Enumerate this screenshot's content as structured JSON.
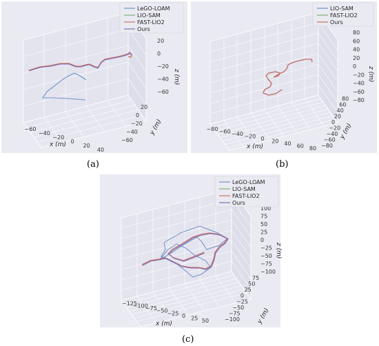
{
  "colors": {
    "lego_loam": "#6f8fc9",
    "lio_sam": "#78b277",
    "fast_lio2": "#c7706b",
    "ours": "#7b6fb7",
    "pane": "#eaeaf2",
    "grid": "#ffffff"
  },
  "chart_data": [
    {
      "type": "line",
      "panel": "a",
      "caption": "(a)",
      "xlabel": "x (m)",
      "ylabel": "y (m)",
      "zlabel": "z (m)",
      "x_ticks": [
        "−60",
        "−40",
        "−20",
        "0",
        "20",
        "40"
      ],
      "y_ticks": [
        "−60",
        "−40",
        "−20",
        "0",
        "20"
      ],
      "z_ticks": [
        "20",
        "0",
        "−20",
        "−40",
        "−60"
      ],
      "legend_placement": "top-right",
      "grid": true,
      "series": [
        {
          "name": "LeGO-LOAM",
          "color_key": "lego_loam"
        },
        {
          "name": "LIO-SAM",
          "color_key": "lio_sam"
        },
        {
          "name": "FAST-LIO2",
          "color_key": "fast_lio2"
        },
        {
          "name": "Ours",
          "color_key": "ours"
        }
      ]
    },
    {
      "type": "line",
      "panel": "b",
      "caption": "(b)",
      "xlabel": "x (m)",
      "ylabel": "y (m)",
      "zlabel": "z (m)",
      "x_ticks": [
        "−80",
        "−60",
        "−40",
        "−20",
        "0",
        "20",
        "40",
        "60",
        "80"
      ],
      "y_ticks": [
        "−80",
        "−60",
        "−40",
        "−20",
        "0",
        "20",
        "40",
        "60",
        "80"
      ],
      "z_ticks": [
        "80",
        "60",
        "40",
        "20",
        "0",
        "−20",
        "−40",
        "−60",
        "−80"
      ],
      "legend_placement": "top-right",
      "grid": true,
      "series": [
        {
          "name": "LIO-SAM",
          "color_key": "lego_loam"
        },
        {
          "name": "FAST-LIO2",
          "color_key": "lio_sam"
        },
        {
          "name": "Ours",
          "color_key": "fast_lio2"
        }
      ]
    },
    {
      "type": "line",
      "panel": "c",
      "caption": "(c)",
      "xlabel": "x (m)",
      "ylabel": "y (m)",
      "zlabel": "z (m)",
      "x_ticks": [
        "−125",
        "−100",
        "−75",
        "−50",
        "−25",
        "0",
        "25",
        "50"
      ],
      "y_ticks": [
        "−100",
        "−75",
        "−50",
        "−25",
        "0",
        "25",
        "50",
        "75"
      ],
      "z_ticks": [
        "100",
        "75",
        "50",
        "25",
        "0",
        "−25",
        "−50",
        "−75",
        "−100"
      ],
      "legend_placement": "top-right",
      "grid": true,
      "series": [
        {
          "name": "LeGO-LOAM",
          "color_key": "lego_loam"
        },
        {
          "name": "LIO-SAM",
          "color_key": "lio_sam"
        },
        {
          "name": "FAST-LIO2",
          "color_key": "fast_lio2"
        },
        {
          "name": "Ours",
          "color_key": "ours"
        }
      ]
    }
  ]
}
